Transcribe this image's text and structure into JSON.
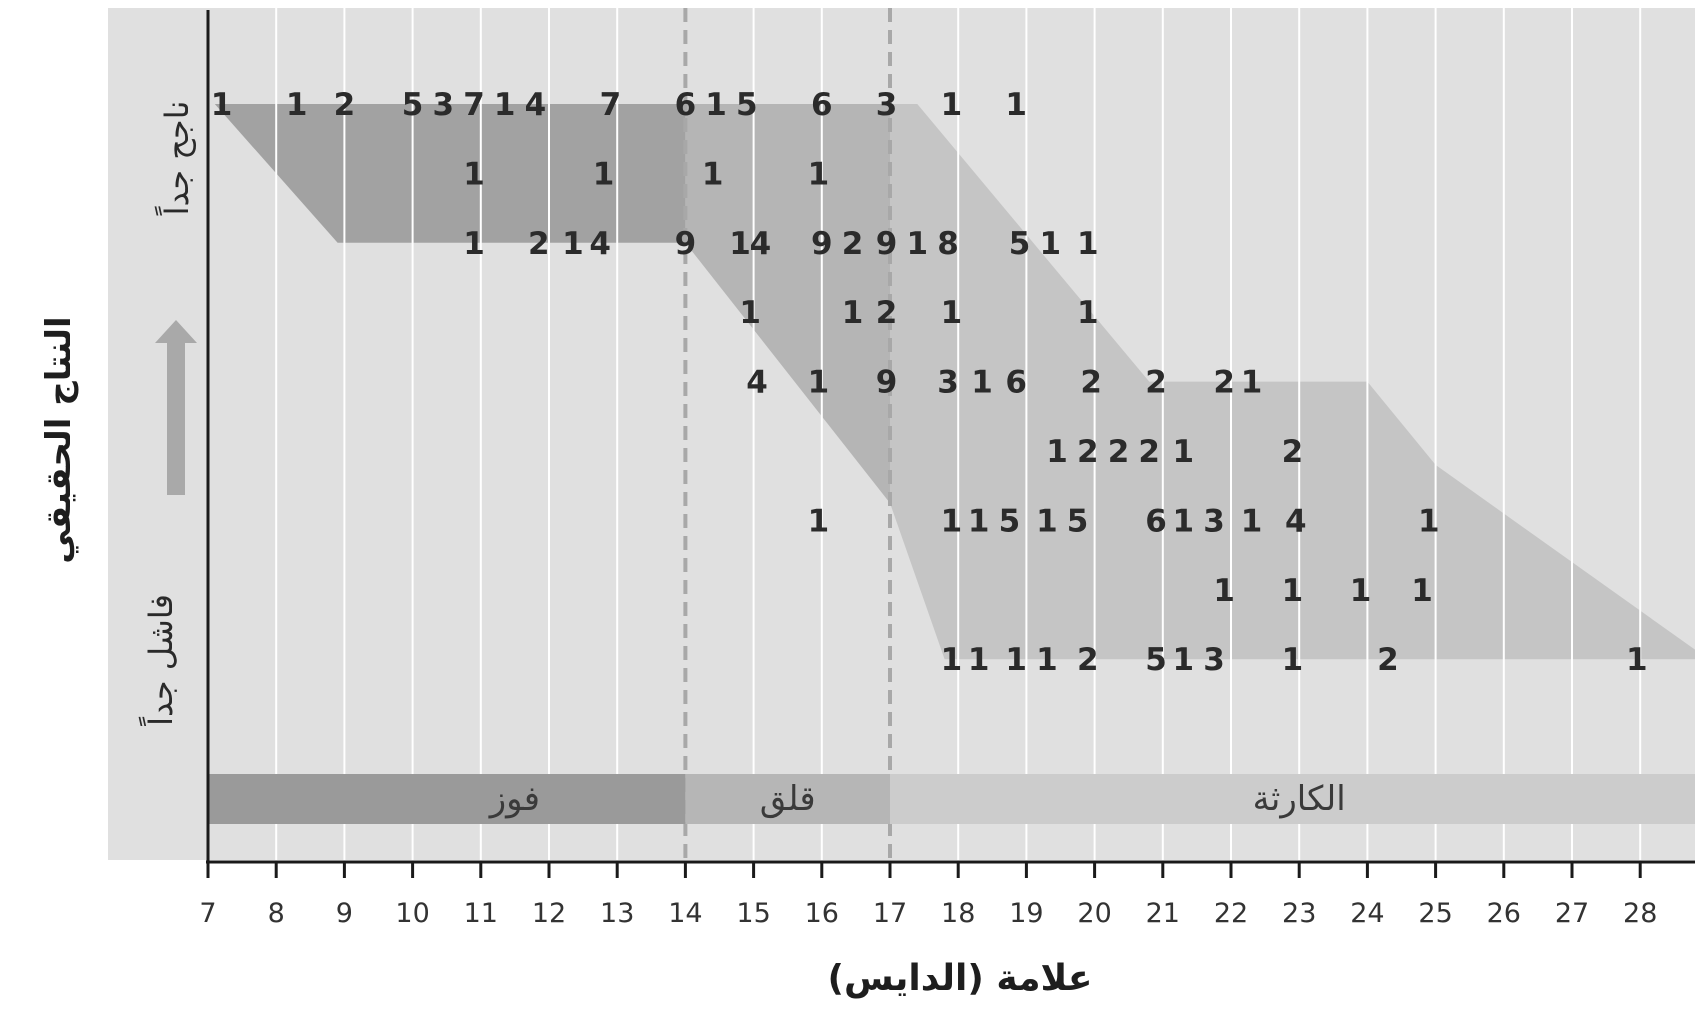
{
  "chart_data": {
    "type": "table",
    "xlabel": "علامة (الدايس)",
    "ylabel": "النتاج الحقيقي",
    "y_top_label": "ناجح جداً",
    "y_bottom_label": "فاشل جداً",
    "x_ticks": [
      7,
      8,
      9,
      10,
      11,
      12,
      13,
      14,
      15,
      16,
      17,
      18,
      19,
      20,
      21,
      22,
      23,
      24,
      25,
      26,
      27,
      28
    ],
    "xlim": [
      7,
      29
    ],
    "y_rows": 9,
    "dividers": [
      14,
      17
    ],
    "zones": [
      {
        "label": "فوز",
        "from": 7,
        "to": 14,
        "color": "#9a9a9a"
      },
      {
        "label": "قلق",
        "from": 14,
        "to": 17,
        "color": "#b6b6b6"
      },
      {
        "label": "الكارثة",
        "from": 17,
        "to": 29,
        "color": "#cccccc"
      }
    ],
    "regions": [
      {
        "color": "#a2a2a2",
        "polygon": [
          [
            7.1,
            9
          ],
          [
            14,
            9
          ],
          [
            14,
            7
          ],
          [
            8.9,
            7
          ]
        ]
      },
      {
        "color": "#b5b5b5",
        "polygon": [
          [
            14,
            9
          ],
          [
            17,
            9
          ],
          [
            17,
            3.25
          ],
          [
            14,
            7
          ]
        ]
      },
      {
        "color": "#c5c5c5",
        "polygon": [
          [
            17,
            9
          ],
          [
            17.4,
            9
          ],
          [
            20.8,
            5
          ],
          [
            24,
            5
          ],
          [
            25,
            3.8
          ],
          [
            29,
            1
          ],
          [
            17.8,
            1
          ],
          [
            17,
            3.25
          ]
        ]
      }
    ],
    "counts": [
      {
        "x": 7.2,
        "y": 9,
        "v": 1
      },
      {
        "x": 8.3,
        "y": 9,
        "v": 1
      },
      {
        "x": 9,
        "y": 9,
        "v": 2
      },
      {
        "x": 10,
        "y": 9,
        "v": 5
      },
      {
        "x": 10.45,
        "y": 9,
        "v": 3
      },
      {
        "x": 10.9,
        "y": 9,
        "v": 7
      },
      {
        "x": 11.35,
        "y": 9,
        "v": 1
      },
      {
        "x": 11.8,
        "y": 9,
        "v": 4
      },
      {
        "x": 12.9,
        "y": 9,
        "v": 7
      },
      {
        "x": 14,
        "y": 9,
        "v": 6
      },
      {
        "x": 14.45,
        "y": 9,
        "v": 1
      },
      {
        "x": 14.9,
        "y": 9,
        "v": 5
      },
      {
        "x": 16,
        "y": 9,
        "v": 6
      },
      {
        "x": 16.95,
        "y": 9,
        "v": 3
      },
      {
        "x": 17.9,
        "y": 9,
        "v": 1
      },
      {
        "x": 18.85,
        "y": 9,
        "v": 1
      },
      {
        "x": 10.9,
        "y": 8,
        "v": 1
      },
      {
        "x": 12.8,
        "y": 8,
        "v": 1
      },
      {
        "x": 14.4,
        "y": 8,
        "v": 1
      },
      {
        "x": 15.95,
        "y": 8,
        "v": 1
      },
      {
        "x": 10.9,
        "y": 7,
        "v": 1
      },
      {
        "x": 11.85,
        "y": 7,
        "v": 2
      },
      {
        "x": 12.35,
        "y": 7,
        "v": 1
      },
      {
        "x": 12.75,
        "y": 7,
        "v": 4
      },
      {
        "x": 14,
        "y": 7,
        "v": 9
      },
      {
        "x": 14.8,
        "y": 7,
        "v": 1
      },
      {
        "x": 15.1,
        "y": 7,
        "v": 4
      },
      {
        "x": 16,
        "y": 7,
        "v": 9
      },
      {
        "x": 16.45,
        "y": 7,
        "v": 2
      },
      {
        "x": 16.95,
        "y": 7,
        "v": 9
      },
      {
        "x": 17.4,
        "y": 7,
        "v": 1
      },
      {
        "x": 17.85,
        "y": 7,
        "v": 8
      },
      {
        "x": 18.9,
        "y": 7,
        "v": 5
      },
      {
        "x": 19.35,
        "y": 7,
        "v": 1
      },
      {
        "x": 19.9,
        "y": 7,
        "v": 1
      },
      {
        "x": 14.95,
        "y": 6,
        "v": 1
      },
      {
        "x": 16.45,
        "y": 6,
        "v": 1
      },
      {
        "x": 16.95,
        "y": 6,
        "v": 2
      },
      {
        "x": 17.9,
        "y": 6,
        "v": 1
      },
      {
        "x": 19.9,
        "y": 6,
        "v": 1
      },
      {
        "x": 15.05,
        "y": 5,
        "v": 4
      },
      {
        "x": 15.95,
        "y": 5,
        "v": 1
      },
      {
        "x": 16.95,
        "y": 5,
        "v": 9
      },
      {
        "x": 17.85,
        "y": 5,
        "v": 3
      },
      {
        "x": 18.35,
        "y": 5,
        "v": 1
      },
      {
        "x": 18.85,
        "y": 5,
        "v": 6
      },
      {
        "x": 19.95,
        "y": 5,
        "v": 2
      },
      {
        "x": 20.9,
        "y": 5,
        "v": 2
      },
      {
        "x": 21.9,
        "y": 5,
        "v": 2
      },
      {
        "x": 22.3,
        "y": 5,
        "v": 1
      },
      {
        "x": 19.45,
        "y": 4,
        "v": 1
      },
      {
        "x": 19.9,
        "y": 4,
        "v": 2
      },
      {
        "x": 20.35,
        "y": 4,
        "v": 2
      },
      {
        "x": 20.8,
        "y": 4,
        "v": 2
      },
      {
        "x": 21.3,
        "y": 4,
        "v": 1
      },
      {
        "x": 22.9,
        "y": 4,
        "v": 2
      },
      {
        "x": 15.95,
        "y": 3,
        "v": 1
      },
      {
        "x": 17.9,
        "y": 3,
        "v": 1
      },
      {
        "x": 18.3,
        "y": 3,
        "v": 1
      },
      {
        "x": 18.75,
        "y": 3,
        "v": 5
      },
      {
        "x": 19.3,
        "y": 3,
        "v": 1
      },
      {
        "x": 19.75,
        "y": 3,
        "v": 5
      },
      {
        "x": 20.9,
        "y": 3,
        "v": 6
      },
      {
        "x": 21.3,
        "y": 3,
        "v": 1
      },
      {
        "x": 21.75,
        "y": 3,
        "v": 3
      },
      {
        "x": 22.3,
        "y": 3,
        "v": 1
      },
      {
        "x": 22.95,
        "y": 3,
        "v": 4
      },
      {
        "x": 24.9,
        "y": 3,
        "v": 1
      },
      {
        "x": 21.9,
        "y": 2,
        "v": 1
      },
      {
        "x": 22.9,
        "y": 2,
        "v": 1
      },
      {
        "x": 23.9,
        "y": 2,
        "v": 1
      },
      {
        "x": 24.8,
        "y": 2,
        "v": 1
      },
      {
        "x": 17.9,
        "y": 1,
        "v": 1
      },
      {
        "x": 18.3,
        "y": 1,
        "v": 1
      },
      {
        "x": 18.85,
        "y": 1,
        "v": 1
      },
      {
        "x": 19.3,
        "y": 1,
        "v": 1
      },
      {
        "x": 19.9,
        "y": 1,
        "v": 2
      },
      {
        "x": 20.9,
        "y": 1,
        "v": 5
      },
      {
        "x": 21.3,
        "y": 1,
        "v": 1
      },
      {
        "x": 21.75,
        "y": 1,
        "v": 3
      },
      {
        "x": 22.9,
        "y": 1,
        "v": 1
      },
      {
        "x": 24.3,
        "y": 1,
        "v": 2
      },
      {
        "x": 27.95,
        "y": 1,
        "v": 1
      }
    ]
  },
  "colors": {
    "panel": "#e0e0e0",
    "gridline": "#ffffff",
    "axis": "#1a1a1a",
    "divider": "#a8a8a8",
    "arrow": "#a9a9a9"
  }
}
